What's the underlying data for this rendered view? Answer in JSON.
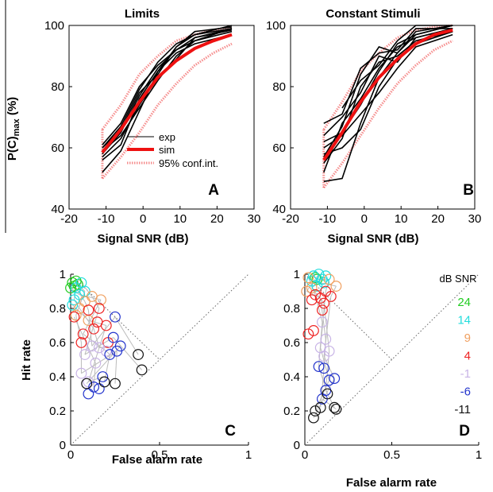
{
  "chart_data": [
    {
      "type": "line",
      "panel": "A",
      "title": "Limits",
      "xlabel": "Signal SNR (dB)",
      "ylabel": "P(C)max (%)",
      "ylabel_main": "P(C)",
      "ylabel_sub": "max",
      "ylabel_unit": " (%)",
      "xlim": [
        -20,
        30
      ],
      "ylim": [
        40,
        100
      ],
      "xticks": [
        "-20",
        "-10",
        "0",
        "10",
        "20",
        "30"
      ],
      "yticks": [
        "40",
        "60",
        "80",
        "100"
      ],
      "legend": {
        "exp": "exp",
        "sim": "sim",
        "ci": "95% conf.int."
      },
      "ci_upper": [
        [
          -11,
          66
        ],
        [
          -6,
          74
        ],
        [
          -1,
          84
        ],
        [
          4,
          90
        ],
        [
          9,
          95
        ],
        [
          14,
          97
        ],
        [
          19,
          98.5
        ],
        [
          24,
          99.5
        ]
      ],
      "ci_lower": [
        [
          -11,
          50
        ],
        [
          -6,
          57
        ],
        [
          -1,
          65
        ],
        [
          4,
          74
        ],
        [
          9,
          81
        ],
        [
          14,
          87
        ],
        [
          19,
          91
        ],
        [
          24,
          94
        ]
      ],
      "sim": [
        [
          -11,
          58.5
        ],
        [
          -6,
          66
        ],
        [
          -1,
          75
        ],
        [
          4,
          83
        ],
        [
          9,
          88.5
        ],
        [
          14,
          92.5
        ],
        [
          19,
          95
        ],
        [
          24,
          97
        ]
      ],
      "exp_series": [
        [
          [
            -11,
            52
          ],
          [
            -6,
            59
          ],
          [
            -1,
            72
          ],
          [
            4,
            85
          ],
          [
            9,
            93
          ],
          [
            14,
            98
          ],
          [
            24,
            99.5
          ]
        ],
        [
          [
            -11,
            58
          ],
          [
            -6,
            65
          ],
          [
            -1,
            77
          ],
          [
            4,
            86
          ],
          [
            9,
            92
          ],
          [
            14,
            96
          ],
          [
            24,
            99
          ]
        ],
        [
          [
            -11,
            60
          ],
          [
            -6,
            67
          ],
          [
            -1,
            79
          ],
          [
            4,
            88
          ],
          [
            9,
            94
          ],
          [
            14,
            97
          ],
          [
            24,
            100
          ]
        ],
        [
          [
            -11,
            59
          ],
          [
            -6,
            64
          ],
          [
            -1,
            73
          ],
          [
            4,
            82
          ],
          [
            9,
            90
          ],
          [
            14,
            95
          ],
          [
            24,
            98
          ]
        ],
        [
          [
            -11,
            56
          ],
          [
            -6,
            61
          ],
          [
            -1,
            76
          ],
          [
            4,
            85
          ],
          [
            9,
            91
          ],
          [
            14,
            94
          ],
          [
            24,
            97
          ]
        ],
        [
          [
            -11,
            60
          ],
          [
            -6,
            66
          ],
          [
            -1,
            78
          ],
          [
            4,
            84
          ],
          [
            9,
            93
          ],
          [
            14,
            97
          ],
          [
            24,
            99
          ]
        ],
        [
          [
            -11,
            57
          ],
          [
            -6,
            63
          ],
          [
            -1,
            74
          ],
          [
            4,
            83
          ],
          [
            9,
            89
          ],
          [
            14,
            96
          ],
          [
            24,
            98.5
          ]
        ],
        [
          [
            -11,
            61
          ],
          [
            -6,
            68
          ],
          [
            -1,
            80
          ],
          [
            4,
            87
          ],
          [
            9,
            92
          ],
          [
            14,
            95
          ],
          [
            24,
            99
          ]
        ]
      ]
    },
    {
      "type": "line",
      "panel": "B",
      "title": "Constant Stimuli",
      "xlabel": "Signal SNR (dB)",
      "xlim": [
        -20,
        30
      ],
      "ylim": [
        40,
        100
      ],
      "xticks": [
        "-20",
        "-10",
        "0",
        "10",
        "20",
        "30"
      ],
      "yticks": [
        "40",
        "60",
        "80",
        "100"
      ],
      "ci_upper": [
        [
          -11,
          66
        ],
        [
          -6,
          75
        ],
        [
          -1,
          85
        ],
        [
          4,
          91
        ],
        [
          9,
          96
        ],
        [
          14,
          98.5
        ],
        [
          19,
          99.5
        ],
        [
          24,
          100
        ]
      ],
      "ci_lower": [
        [
          -11,
          47
        ],
        [
          -6,
          55
        ],
        [
          -1,
          64
        ],
        [
          4,
          73
        ],
        [
          9,
          81
        ],
        [
          14,
          87
        ],
        [
          19,
          92
        ],
        [
          24,
          95
        ]
      ],
      "sim": [
        [
          -11,
          56
        ],
        [
          -6,
          65
        ],
        [
          -1,
          75
        ],
        [
          4,
          83
        ],
        [
          9,
          89
        ],
        [
          14,
          94
        ],
        [
          19,
          97
        ],
        [
          24,
          98.5
        ]
      ],
      "exp_series": [
        [
          [
            -11,
            52
          ],
          [
            -6,
            68
          ],
          [
            -1,
            76
          ],
          [
            4,
            86
          ],
          [
            9,
            93
          ],
          [
            14,
            96
          ],
          [
            24,
            99
          ]
        ],
        [
          [
            -11,
            49
          ],
          [
            -6,
            50
          ],
          [
            -1,
            68
          ],
          [
            4,
            83
          ],
          [
            9,
            91
          ],
          [
            14,
            97
          ],
          [
            24,
            100
          ]
        ],
        [
          [
            -11,
            68
          ],
          [
            -6,
            71
          ],
          [
            -1,
            86
          ],
          [
            4,
            91
          ],
          [
            9,
            92
          ],
          [
            14,
            99
          ],
          [
            24,
            99
          ]
        ],
        [
          [
            -11,
            55
          ],
          [
            -6,
            63
          ],
          [
            -1,
            80
          ],
          [
            4,
            88
          ],
          [
            9,
            90
          ],
          [
            14,
            95
          ],
          [
            24,
            98
          ]
        ],
        [
          [
            -11,
            62
          ],
          [
            -6,
            65
          ],
          [
            -1,
            74
          ],
          [
            4,
            85
          ],
          [
            9,
            94
          ],
          [
            14,
            97
          ],
          [
            24,
            100
          ]
        ],
        [
          [
            -11,
            58
          ],
          [
            -6,
            60
          ],
          [
            -1,
            66
          ],
          [
            4,
            80
          ],
          [
            9,
            89
          ],
          [
            14,
            94
          ],
          [
            24,
            98
          ]
        ],
        [
          [
            -11,
            64
          ],
          [
            -6,
            70
          ],
          [
            -1,
            78
          ],
          [
            4,
            90
          ],
          [
            9,
            88
          ],
          [
            14,
            96
          ],
          [
            24,
            99
          ]
        ],
        [
          [
            -11,
            57
          ],
          [
            -6,
            67
          ],
          [
            -1,
            84
          ],
          [
            4,
            93
          ],
          [
            9,
            91
          ],
          [
            14,
            98
          ],
          [
            24,
            100
          ]
        ],
        [
          [
            -11,
            60
          ],
          [
            -6,
            64
          ],
          [
            -1,
            71
          ],
          [
            4,
            78
          ],
          [
            9,
            86
          ],
          [
            14,
            93
          ],
          [
            24,
            97
          ]
        ],
        [
          [
            -6,
            73
          ],
          [
            -1,
            82
          ],
          [
            4,
            87
          ],
          [
            9,
            95
          ],
          [
            14,
            100
          ],
          [
            24,
            100
          ]
        ]
      ]
    },
    {
      "type": "scatter",
      "panel": "C",
      "xlabel": "False alarm rate",
      "ylabel": "Hit rate",
      "xlim": [
        0,
        1
      ],
      "ylim": [
        0,
        1
      ],
      "xticks": [
        "0",
        "0.5",
        "1"
      ],
      "yticks": [
        "0",
        "0.2",
        "0.4",
        "0.6",
        "0.8",
        "1"
      ],
      "groups": [
        {
          "snr": "24",
          "color": "#22cc22",
          "points": [
            [
              0.01,
              0.95
            ],
            [
              0.02,
              0.93
            ],
            [
              0.03,
              0.96
            ],
            [
              0.0,
              0.92
            ],
            [
              0.04,
              0.94
            ]
          ]
        },
        {
          "snr": "14",
          "color": "#22dddd",
          "points": [
            [
              0.03,
              0.92
            ],
            [
              0.06,
              0.95
            ],
            [
              0.02,
              0.85
            ],
            [
              0.05,
              0.88
            ],
            [
              0.08,
              0.9
            ],
            [
              0.01,
              0.82
            ]
          ]
        },
        {
          "snr": "9",
          "color": "#f0a060",
          "points": [
            [
              0.08,
              0.84
            ],
            [
              0.12,
              0.87
            ],
            [
              0.05,
              0.8
            ],
            [
              0.17,
              0.85
            ],
            [
              0.03,
              0.76
            ],
            [
              0.1,
              0.73
            ]
          ]
        },
        {
          "snr": "4",
          "color": "#ee2222",
          "points": [
            [
              0.1,
              0.79
            ],
            [
              0.16,
              0.8
            ],
            [
              0.13,
              0.68
            ],
            [
              0.07,
              0.65
            ],
            [
              0.06,
              0.6
            ],
            [
              0.2,
              0.7
            ],
            [
              0.02,
              0.75
            ],
            [
              0.15,
              0.72
            ],
            [
              0.21,
              0.6
            ]
          ]
        },
        {
          "snr": "-1",
          "color": "#c8b4e6",
          "points": [
            [
              0.12,
              0.58
            ],
            [
              0.08,
              0.53
            ],
            [
              0.16,
              0.57
            ],
            [
              0.2,
              0.55
            ],
            [
              0.06,
              0.42
            ],
            [
              0.1,
              0.37
            ],
            [
              0.14,
              0.48
            ]
          ]
        },
        {
          "snr": "-6",
          "color": "#2233cc",
          "points": [
            [
              0.25,
              0.75
            ],
            [
              0.24,
              0.63
            ],
            [
              0.28,
              0.58
            ],
            [
              0.22,
              0.53
            ],
            [
              0.26,
              0.55
            ],
            [
              0.18,
              0.4
            ],
            [
              0.13,
              0.34
            ],
            [
              0.1,
              0.3
            ],
            [
              0.16,
              0.33
            ]
          ]
        },
        {
          "snr": "-11",
          "color": "#111111",
          "points": [
            [
              0.38,
              0.53
            ],
            [
              0.4,
              0.44
            ],
            [
              0.09,
              0.36
            ],
            [
              0.19,
              0.37
            ],
            [
              0.25,
              0.36
            ]
          ]
        }
      ]
    },
    {
      "type": "scatter",
      "panel": "D",
      "xlabel": "False alarm rate",
      "xlim": [
        0,
        1
      ],
      "ylim": [
        0,
        1
      ],
      "xticks": [
        "0",
        "0.5",
        "1"
      ],
      "yticks": [
        "0",
        "0.2",
        "0.4",
        "0.6",
        "0.8",
        "1"
      ],
      "legend_title": "dB SNR",
      "groups": [
        {
          "snr": "24",
          "color": "#22cc22",
          "points": [
            [
              0.06,
              0.98
            ],
            [
              0.07,
              0.97
            ]
          ]
        },
        {
          "snr": "14",
          "color": "#22dddd",
          "points": [
            [
              0.05,
              0.99
            ],
            [
              0.08,
              1.0
            ],
            [
              0.1,
              0.97
            ],
            [
              0.04,
              0.96
            ],
            [
              0.12,
              0.99
            ],
            [
              0.07,
              0.93
            ],
            [
              0.11,
              0.95
            ]
          ]
        },
        {
          "snr": "9",
          "color": "#f0a060",
          "points": [
            [
              0.02,
              0.98
            ],
            [
              0.01,
              0.9
            ],
            [
              0.14,
              0.97
            ],
            [
              0.18,
              0.93
            ],
            [
              0.04,
              0.92
            ]
          ]
        },
        {
          "snr": "4",
          "color": "#ee2222",
          "points": [
            [
              0.06,
              0.88
            ],
            [
              0.09,
              0.86
            ],
            [
              0.12,
              0.9
            ],
            [
              0.15,
              0.87
            ],
            [
              0.11,
              0.83
            ],
            [
              0.1,
              0.79
            ],
            [
              0.04,
              0.85
            ],
            [
              0.02,
              0.65
            ],
            [
              0.05,
              0.67
            ]
          ]
        },
        {
          "snr": "-1",
          "color": "#c8b4e6",
          "points": [
            [
              0.1,
              0.72
            ],
            [
              0.12,
              0.62
            ],
            [
              0.09,
              0.57
            ],
            [
              0.11,
              0.52
            ],
            [
              0.14,
              0.55
            ]
          ]
        },
        {
          "snr": "-6",
          "color": "#2233cc",
          "points": [
            [
              0.08,
              0.46
            ],
            [
              0.11,
              0.45
            ],
            [
              0.14,
              0.38
            ],
            [
              0.17,
              0.39
            ],
            [
              0.12,
              0.32
            ],
            [
              0.1,
              0.27
            ]
          ]
        },
        {
          "snr": "-11",
          "color": "#111111",
          "points": [
            [
              0.13,
              0.3
            ],
            [
              0.09,
              0.22
            ],
            [
              0.06,
              0.2
            ],
            [
              0.05,
              0.16
            ],
            [
              0.17,
              0.22
            ],
            [
              0.18,
              0.21
            ]
          ]
        }
      ]
    }
  ]
}
